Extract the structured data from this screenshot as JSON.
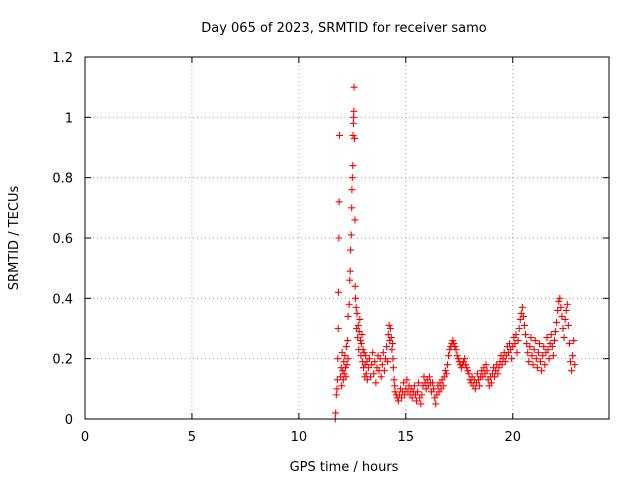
{
  "chart_data": {
    "type": "scatter",
    "title": "Day 065 of 2023, SRMTID for receiver samo",
    "xlabel": "GPS time / hours",
    "ylabel": "SRMTID / TECUs",
    "xlim": [
      0,
      24.5
    ],
    "ylim": [
      0,
      1.2
    ],
    "xticks": [
      0,
      5,
      10,
      15,
      20
    ],
    "yticks": [
      0,
      0.2,
      0.4,
      0.6,
      0.8,
      1.0,
      1.2
    ],
    "xtick_labels": [
      "0",
      "5",
      "10",
      "15",
      "20"
    ],
    "ytick_labels": [
      "0",
      "0.2",
      "0.4",
      "0.6",
      "0.8",
      "1",
      "1.2"
    ],
    "grid": true,
    "marker": "+",
    "marker_color": "#ff0000",
    "series": [
      {
        "name": "samo",
        "points": [
          [
            11.7,
            0.0
          ],
          [
            11.72,
            0.02
          ],
          [
            11.75,
            0.08
          ],
          [
            11.78,
            0.1
          ],
          [
            11.8,
            0.13
          ],
          [
            11.82,
            0.2
          ],
          [
            11.84,
            0.3
          ],
          [
            11.85,
            0.42
          ],
          [
            11.87,
            0.6
          ],
          [
            11.88,
            0.72
          ],
          [
            11.9,
            0.94
          ],
          [
            11.95,
            0.14
          ],
          [
            11.98,
            0.17
          ],
          [
            12.0,
            0.11
          ],
          [
            12.02,
            0.22
          ],
          [
            12.05,
            0.16
          ],
          [
            12.08,
            0.13
          ],
          [
            12.1,
            0.19
          ],
          [
            12.12,
            0.15
          ],
          [
            12.15,
            0.21
          ],
          [
            12.18,
            0.17
          ],
          [
            12.2,
            0.14
          ],
          [
            12.22,
            0.24
          ],
          [
            12.25,
            0.18
          ],
          [
            12.28,
            0.26
          ],
          [
            12.3,
            0.2
          ],
          [
            12.3,
            0.34
          ],
          [
            12.35,
            0.38
          ],
          [
            12.38,
            0.46
          ],
          [
            12.4,
            0.49
          ],
          [
            12.42,
            0.56
          ],
          [
            12.45,
            0.61
          ],
          [
            12.47,
            0.7
          ],
          [
            12.48,
            0.76
          ],
          [
            12.5,
            0.8
          ],
          [
            12.52,
            0.84
          ],
          [
            12.53,
            0.94
          ],
          [
            12.55,
            0.98
          ],
          [
            12.56,
            1.0
          ],
          [
            12.57,
            1.02
          ],
          [
            12.58,
            1.1
          ],
          [
            12.6,
            0.93
          ],
          [
            12.62,
            0.66
          ],
          [
            12.63,
            0.44
          ],
          [
            12.65,
            0.4
          ],
          [
            12.68,
            0.37
          ],
          [
            12.7,
            0.3
          ],
          [
            12.72,
            0.35
          ],
          [
            12.75,
            0.27
          ],
          [
            12.78,
            0.31
          ],
          [
            12.8,
            0.23
          ],
          [
            12.82,
            0.29
          ],
          [
            12.85,
            0.33
          ],
          [
            12.88,
            0.26
          ],
          [
            12.9,
            0.21
          ],
          [
            12.92,
            0.25
          ],
          [
            12.95,
            0.28
          ],
          [
            12.98,
            0.19
          ],
          [
            13.0,
            0.23
          ],
          [
            13.02,
            0.17
          ],
          [
            13.05,
            0.22
          ],
          [
            13.08,
            0.14
          ],
          [
            13.1,
            0.18
          ],
          [
            13.12,
            0.21
          ],
          [
            13.15,
            0.15
          ],
          [
            13.18,
            0.19
          ],
          [
            13.2,
            0.13
          ],
          [
            13.25,
            0.17
          ],
          [
            13.3,
            0.2
          ],
          [
            13.35,
            0.14
          ],
          [
            13.4,
            0.18
          ],
          [
            13.45,
            0.22
          ],
          [
            13.5,
            0.15
          ],
          [
            13.55,
            0.19
          ],
          [
            13.6,
            0.12
          ],
          [
            13.65,
            0.17
          ],
          [
            13.7,
            0.21
          ],
          [
            13.75,
            0.16
          ],
          [
            13.8,
            0.2
          ],
          [
            13.85,
            0.14
          ],
          [
            13.9,
            0.18
          ],
          [
            13.95,
            0.22
          ],
          [
            14.0,
            0.16
          ],
          [
            14.05,
            0.2
          ],
          [
            14.1,
            0.24
          ],
          [
            14.15,
            0.19
          ],
          [
            14.18,
            0.28
          ],
          [
            14.22,
            0.31
          ],
          [
            14.25,
            0.26
          ],
          [
            14.28,
            0.3
          ],
          [
            14.32,
            0.27
          ],
          [
            14.35,
            0.23
          ],
          [
            14.38,
            0.25
          ],
          [
            14.4,
            0.2
          ],
          [
            14.42,
            0.17
          ],
          [
            14.45,
            0.13
          ],
          [
            14.48,
            0.11
          ],
          [
            14.5,
            0.09
          ],
          [
            14.55,
            0.08
          ],
          [
            14.6,
            0.07
          ],
          [
            14.65,
            0.06
          ],
          [
            14.7,
            0.08
          ],
          [
            14.75,
            0.1
          ],
          [
            14.8,
            0.07
          ],
          [
            14.85,
            0.09
          ],
          [
            14.9,
            0.12
          ],
          [
            14.95,
            0.08
          ],
          [
            15.0,
            0.1
          ],
          [
            15.05,
            0.13
          ],
          [
            15.1,
            0.09
          ],
          [
            15.15,
            0.11
          ],
          [
            15.2,
            0.08
          ],
          [
            15.25,
            0.1
          ],
          [
            15.3,
            0.07
          ],
          [
            15.35,
            0.09
          ],
          [
            15.4,
            0.11
          ],
          [
            15.45,
            0.08
          ],
          [
            15.5,
            0.06
          ],
          [
            15.55,
            0.09
          ],
          [
            15.6,
            0.12
          ],
          [
            15.65,
            0.07
          ],
          [
            15.7,
            0.05
          ],
          [
            15.75,
            0.08
          ],
          [
            15.8,
            0.11
          ],
          [
            15.85,
            0.14
          ],
          [
            15.9,
            0.12
          ],
          [
            15.95,
            0.1
          ],
          [
            16.0,
            0.13
          ],
          [
            16.05,
            0.11
          ],
          [
            16.1,
            0.14
          ],
          [
            16.15,
            0.12
          ],
          [
            16.2,
            0.09
          ],
          [
            16.25,
            0.12
          ],
          [
            16.3,
            0.1
          ],
          [
            16.35,
            0.07
          ],
          [
            16.4,
            0.05
          ],
          [
            16.45,
            0.08
          ],
          [
            16.5,
            0.11
          ],
          [
            16.55,
            0.09
          ],
          [
            16.6,
            0.12
          ],
          [
            16.65,
            0.1
          ],
          [
            16.7,
            0.13
          ],
          [
            16.75,
            0.11
          ],
          [
            16.8,
            0.14
          ],
          [
            16.85,
            0.16
          ],
          [
            16.9,
            0.15
          ],
          [
            16.95,
            0.18
          ],
          [
            17.0,
            0.21
          ],
          [
            17.05,
            0.23
          ],
          [
            17.1,
            0.24
          ],
          [
            17.15,
            0.25
          ],
          [
            17.2,
            0.26
          ],
          [
            17.25,
            0.25
          ],
          [
            17.3,
            0.24
          ],
          [
            17.35,
            0.23
          ],
          [
            17.4,
            0.21
          ],
          [
            17.45,
            0.2
          ],
          [
            17.5,
            0.19
          ],
          [
            17.55,
            0.18
          ],
          [
            17.6,
            0.17
          ],
          [
            17.65,
            0.18
          ],
          [
            17.7,
            0.19
          ],
          [
            17.75,
            0.2
          ],
          [
            17.8,
            0.18
          ],
          [
            17.85,
            0.17
          ],
          [
            17.9,
            0.16
          ],
          [
            17.95,
            0.15
          ],
          [
            18.0,
            0.13
          ],
          [
            18.05,
            0.12
          ],
          [
            18.1,
            0.14
          ],
          [
            18.15,
            0.11
          ],
          [
            18.2,
            0.13
          ],
          [
            18.25,
            0.1
          ],
          [
            18.3,
            0.12
          ],
          [
            18.35,
            0.15
          ],
          [
            18.4,
            0.13
          ],
          [
            18.45,
            0.11
          ],
          [
            18.5,
            0.14
          ],
          [
            18.55,
            0.16
          ],
          [
            18.6,
            0.14
          ],
          [
            18.65,
            0.17
          ],
          [
            18.7,
            0.15
          ],
          [
            18.75,
            0.18
          ],
          [
            18.8,
            0.16
          ],
          [
            18.85,
            0.13
          ],
          [
            18.9,
            0.11
          ],
          [
            18.95,
            0.14
          ],
          [
            19.0,
            0.12
          ],
          [
            19.05,
            0.15
          ],
          [
            19.1,
            0.17
          ],
          [
            19.15,
            0.14
          ],
          [
            19.2,
            0.16
          ],
          [
            19.25,
            0.18
          ],
          [
            19.3,
            0.15
          ],
          [
            19.35,
            0.17
          ],
          [
            19.4,
            0.19
          ],
          [
            19.45,
            0.21
          ],
          [
            19.5,
            0.18
          ],
          [
            19.55,
            0.2
          ],
          [
            19.6,
            0.22
          ],
          [
            19.65,
            0.19
          ],
          [
            19.7,
            0.21
          ],
          [
            19.75,
            0.24
          ],
          [
            19.8,
            0.22
          ],
          [
            19.85,
            0.25
          ],
          [
            19.9,
            0.23
          ],
          [
            19.95,
            0.2
          ],
          [
            20.0,
            0.24
          ],
          [
            20.05,
            0.27
          ],
          [
            20.1,
            0.25
          ],
          [
            20.15,
            0.28
          ],
          [
            20.2,
            0.22
          ],
          [
            20.25,
            0.26
          ],
          [
            20.3,
            0.3
          ],
          [
            20.35,
            0.33
          ],
          [
            20.4,
            0.35
          ],
          [
            20.45,
            0.37
          ],
          [
            20.5,
            0.34
          ],
          [
            20.55,
            0.31
          ],
          [
            20.6,
            0.28
          ],
          [
            20.65,
            0.25
          ],
          [
            20.7,
            0.22
          ],
          [
            20.75,
            0.19
          ],
          [
            20.8,
            0.24
          ],
          [
            20.85,
            0.27
          ],
          [
            20.9,
            0.21
          ],
          [
            20.95,
            0.18
          ],
          [
            21.0,
            0.23
          ],
          [
            21.05,
            0.26
          ],
          [
            21.1,
            0.2
          ],
          [
            21.15,
            0.17
          ],
          [
            21.2,
            0.22
          ],
          [
            21.25,
            0.25
          ],
          [
            21.3,
            0.19
          ],
          [
            21.35,
            0.16
          ],
          [
            21.4,
            0.21
          ],
          [
            21.45,
            0.24
          ],
          [
            21.5,
            0.18
          ],
          [
            21.55,
            0.22
          ],
          [
            21.6,
            0.27
          ],
          [
            21.65,
            0.23
          ],
          [
            21.7,
            0.2
          ],
          [
            21.75,
            0.25
          ],
          [
            21.8,
            0.28
          ],
          [
            21.85,
            0.24
          ],
          [
            21.9,
            0.21
          ],
          [
            21.95,
            0.26
          ],
          [
            22.0,
            0.29
          ],
          [
            22.05,
            0.32
          ],
          [
            22.1,
            0.36
          ],
          [
            22.15,
            0.39
          ],
          [
            22.2,
            0.4
          ],
          [
            22.25,
            0.37
          ],
          [
            22.3,
            0.34
          ],
          [
            22.35,
            0.3
          ],
          [
            22.4,
            0.27
          ],
          [
            22.45,
            0.33
          ],
          [
            22.5,
            0.36
          ],
          [
            22.55,
            0.38
          ],
          [
            22.6,
            0.31
          ],
          [
            22.65,
            0.25
          ],
          [
            22.7,
            0.19
          ],
          [
            22.75,
            0.16
          ],
          [
            22.8,
            0.21
          ],
          [
            22.85,
            0.26
          ],
          [
            22.9,
            0.18
          ]
        ]
      }
    ]
  }
}
